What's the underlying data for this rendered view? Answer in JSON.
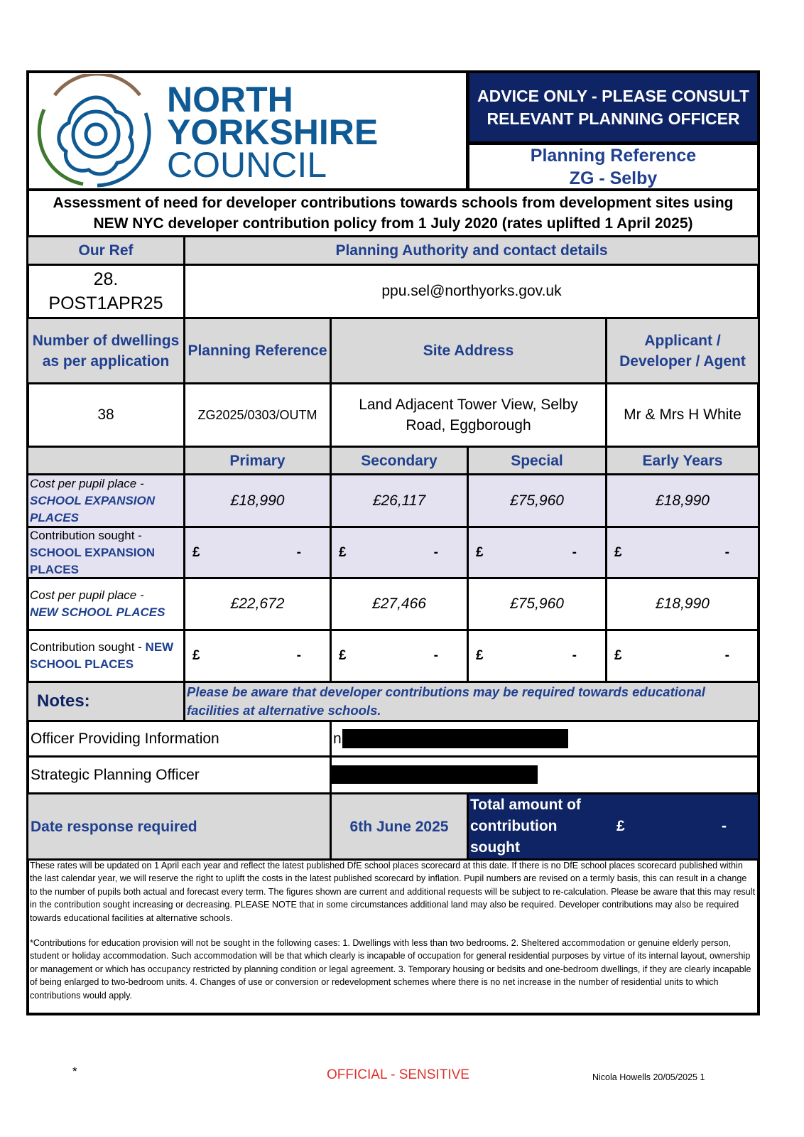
{
  "logo": {
    "line1": "NORTH",
    "line2": "YORKSHIRE",
    "line3": "COUNCIL",
    "colors": {
      "blue": "#0f5a94",
      "brown": "#8b6a4f",
      "green": "#3d7a2e"
    }
  },
  "advice": "ADVICE ONLY - PLEASE CONSULT RELEVANT PLANNING OFFICER",
  "planning_ref_header": {
    "label": "Planning Reference",
    "value": "ZG - Selby"
  },
  "title": "Assessment of need for developer contributions towards schools from development sites using NEW NYC developer contribution policy from 1 July 2020 (rates uplifted 1 April 2025)",
  "our_ref": {
    "label": "Our Ref",
    "value_line1": "28.",
    "value_line2": "POST1APR25"
  },
  "authority": {
    "label": "Planning Authority and contact details",
    "value": "ppu.sel@northyorks.gov.uk"
  },
  "details": {
    "headers": [
      "Number of dwellings as per application",
      "Planning Reference",
      "Site Address",
      "Applicant / Developer / Agent"
    ],
    "values": [
      "38",
      "ZG2025/0303/OUTM",
      "Land Adjacent Tower View, Selby Road, Eggborough",
      "Mr & Mrs H White"
    ]
  },
  "phases": [
    "Primary",
    "Secondary",
    "Special",
    "Early Years"
  ],
  "rows": [
    {
      "label_pre": "Cost per pupil place - ",
      "label_bold": "SCHOOL EXPANSION PLACES",
      "values": [
        "£18,990",
        "£26,117",
        "£75,960",
        "£18,990"
      ]
    },
    {
      "label_pre": "Contribution sought - ",
      "label_bold": "SCHOOL EXPANSION PLACES",
      "currency": "£",
      "values": [
        "-",
        "-",
        "-",
        "-"
      ]
    },
    {
      "label_pre": "Cost per pupil place - ",
      "label_bold": "NEW SCHOOL PLACES",
      "values": [
        "£22,672",
        "£27,466",
        "£75,960",
        "£18,990"
      ]
    },
    {
      "label_pre": "Contribution sought - ",
      "label_bold": "NEW SCHOOL PLACES",
      "currency": "£",
      "values": [
        "-",
        "-",
        "-",
        "-"
      ]
    }
  ],
  "notes": {
    "label": "Notes:",
    "text": "Please be aware that developer contributions may be required towards educational facilities at alternative schools."
  },
  "officer": {
    "label": "Officer Providing Information",
    "value_visible": "ni"
  },
  "strategic": {
    "label": "Strategic Planning Officer"
  },
  "date": {
    "label": "Date response required",
    "value": "6th June 2025"
  },
  "total": {
    "label": "Total amount of contribution sought",
    "currency": "£",
    "value": "-"
  },
  "footnote1": "These rates will be updated on 1 April each year and reflect the latest published DfE school places scorecard at this date. If there is no DfE school places scorecard published within the last calendar year, we will reserve the right to uplift the costs in the latest published scorecard by inflation.  Pupil numbers are revised on a termly basis, this can result in a change to the number of pupils both actual and forecast every term.  The figures shown are current and additional requests will be subject to re-calculation. Please be aware that this may result in the contribution sought increasing or decreasing.  PLEASE NOTE that in some circumstances additional land may also be required. Developer contributions may also be required towards educational facilities at alternative schools.",
  "footnote2": "*Contributions for education provision will not be sought in the following cases:  1. Dwellings with less than two bedrooms. 2.  Sheltered accommodation or genuine elderly person, student or holiday accommodation. Such accommodation will be that which clearly is incapable of occupation for general residential purposes by virtue of its internal layout, ownership or management or which has occupancy restricted by planning condition or legal agreement. 3. Temporary housing or bedsits and one-bedroom dwellings, if they are clearly incapable of being enlarged to two-bedroom units. 4. Changes of use or conversion or redevelopment schemes where there is no net increase in the number of residential units to which contributions would apply.",
  "page_footer": {
    "asterisk": "*",
    "classification": "OFFICIAL - SENSITIVE",
    "author": "Nicola Howells 20/05/2025 1",
    "classification_color": "#e0302c"
  }
}
